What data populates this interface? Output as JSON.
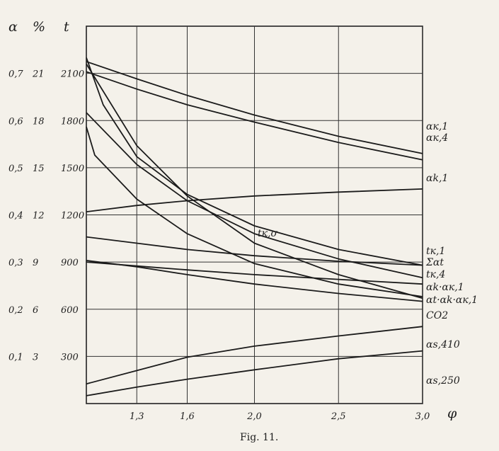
{
  "chart_data": {
    "type": "line",
    "title": "",
    "caption": "Fig. 11.",
    "axis_headers": {
      "alpha": "α",
      "percent": "%",
      "temperature": "t",
      "x": "φ"
    },
    "x_range": [
      1.0,
      3.0
    ],
    "x_ticks": [
      "1,3",
      "1,6",
      "2,0",
      "2,5",
      "3,0"
    ],
    "x_tick_values": [
      1.3,
      1.6,
      2.0,
      2.5,
      3.0
    ],
    "y_range_temperature": [
      0,
      2400
    ],
    "y_ticks": {
      "alpha": [
        "0,1",
        "0,2",
        "0,3",
        "0,4",
        "0,5",
        "0,6",
        "0,7"
      ],
      "percent": [
        "3",
        "6",
        "9",
        "12",
        "15",
        "18",
        "21"
      ],
      "temperature": [
        "300",
        "600",
        "900",
        "1200",
        "1500",
        "1800",
        "2100"
      ]
    },
    "y_tick_values_temperature": [
      300,
      600,
      900,
      1200,
      1500,
      1800,
      2100
    ],
    "grid": true,
    "series": [
      {
        "name": "α_{к,1}",
        "label": "αк,1",
        "x": [
          1.0,
          1.3,
          1.6,
          2.0,
          2.5,
          3.0
        ],
        "y": [
          2175,
          2065,
          1960,
          1835,
          1700,
          1590
        ]
      },
      {
        "name": "α_{к,4}",
        "label": "αк,4",
        "x": [
          1.0,
          1.3,
          1.6,
          2.0,
          2.5,
          3.0
        ],
        "y": [
          2110,
          2000,
          1900,
          1790,
          1660,
          1550
        ]
      },
      {
        "name": "α_{k,1}",
        "label": "αk,1",
        "x": [
          1.0,
          1.3,
          1.6,
          2.0,
          2.5,
          3.0
        ],
        "y": [
          1220,
          1260,
          1290,
          1320,
          1345,
          1365
        ]
      },
      {
        "name": "t_{к,σ}",
        "label": "tк,σ",
        "x": [
          1.0,
          1.1,
          1.3,
          1.6,
          2.0,
          2.5,
          3.0
        ],
        "y": [
          2200,
          1900,
          1570,
          1330,
          1130,
          980,
          880
        ]
      },
      {
        "name": "t_{к,1}",
        "label": "tк,1",
        "x": [
          1.0,
          1.3,
          1.6,
          2.0,
          2.5,
          3.0
        ],
        "y": [
          1850,
          1520,
          1290,
          1080,
          920,
          800
        ]
      },
      {
        "name": "Σα_t",
        "label": "Σαt",
        "x": [
          1.0,
          1.3,
          1.6,
          2.0,
          2.5,
          3.0
        ],
        "y": [
          1060,
          1020,
          980,
          940,
          905,
          880
        ]
      },
      {
        "name": "t_{к,4}",
        "label": "tк,4",
        "x": [
          1.0,
          1.05,
          1.3,
          1.6,
          2.0,
          2.5,
          3.0
        ],
        "y": [
          1760,
          1580,
          1300,
          1080,
          890,
          760,
          680
        ]
      },
      {
        "name": "α_k·α_{к,1}",
        "label": "αk·αк,1",
        "x": [
          1.0,
          1.3,
          1.6,
          2.0,
          2.5,
          3.0
        ],
        "y": [
          900,
          875,
          850,
          820,
          790,
          760
        ]
      },
      {
        "name": "α_t·α_k·α_{к,1}",
        "label": "αt·αk·αк,1",
        "x": [
          1.0,
          1.3,
          1.6,
          2.0,
          2.5,
          3.0
        ],
        "y": [
          910,
          870,
          820,
          760,
          700,
          650
        ]
      },
      {
        "name": "CO_2",
        "label": "CO2",
        "x": [
          1.0,
          1.3,
          1.6,
          2.0,
          2.5,
          3.0
        ],
        "y": [
          2160,
          1640,
          1320,
          1020,
          820,
          670
        ]
      },
      {
        "name": "α_{s,410}",
        "label": "αs,410",
        "x": [
          1.0,
          1.3,
          1.6,
          2.0,
          2.5,
          3.0
        ],
        "y": [
          125,
          210,
          295,
          365,
          430,
          490
        ]
      },
      {
        "name": "α_{s,250}",
        "label": "αs,250",
        "x": [
          1.0,
          1.3,
          1.6,
          2.0,
          2.5,
          3.0
        ],
        "y": [
          50,
          105,
          155,
          215,
          285,
          335
        ]
      }
    ]
  }
}
